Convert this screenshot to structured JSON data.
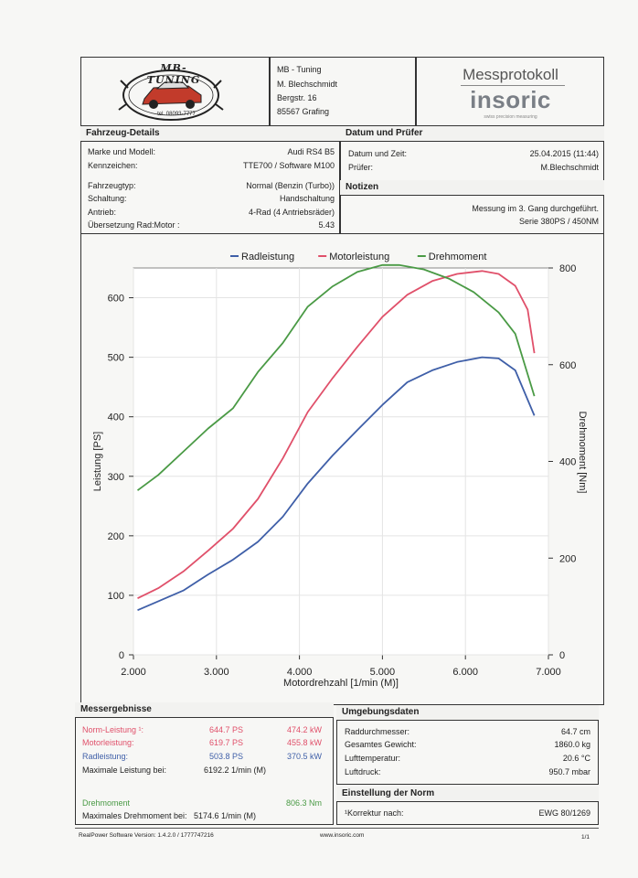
{
  "company": {
    "logo_text": "MB-TUNING",
    "logo_phone": "tel. 08093-7777",
    "name": "MB - Tuning",
    "person": "M. Blechschmidt",
    "street": "Bergstr. 16",
    "city": "85567 Grafing"
  },
  "protocol": {
    "title": "Messprotokoll",
    "brand": "insoric",
    "brand_tagline": "swiss precision measuring"
  },
  "vehicle": {
    "header": "Fahrzeug-Details",
    "rows": [
      {
        "label": "Marke und Modell:",
        "value": "Audi RS4 B5"
      },
      {
        "label": "Kennzeichen:",
        "value": "TTE700 / Software M100"
      },
      {
        "label": "Fahrzeugtyp:",
        "value": "Normal (Benzin (Turbo))"
      },
      {
        "label": "Schaltung:",
        "value": "Handschaltung"
      },
      {
        "label": "Antrieb:",
        "value": "4-Rad (4 Antriebsräder)"
      },
      {
        "label": "Übersetzung Rad:Motor :",
        "value": "5.43"
      }
    ]
  },
  "date": {
    "header": "Datum und Prüfer",
    "rows": [
      {
        "label": "Datum und Zeit:",
        "value": "25.04.2015 (11:44)"
      },
      {
        "label": "Prüfer:",
        "value": "M.Blechschmidt"
      }
    ]
  },
  "notes": {
    "header": "Notizen",
    "line1": "Messung im 3. Gang durchgeführt.",
    "line2": "Serie 380PS / 450NM"
  },
  "chart_data": {
    "type": "line",
    "title": "",
    "xlabel": "Motordrehzahl [1/min (M)]",
    "ylabel": "Leistung [PS]",
    "y2label": "Drehmoment [Nm]",
    "xlim": [
      2000,
      7000
    ],
    "ylim": [
      0,
      650
    ],
    "y2lim": [
      0,
      800
    ],
    "xticks": [
      2000,
      3000,
      4000,
      5000,
      6000,
      7000
    ],
    "xtick_labels": [
      "2.000",
      "3.000",
      "4.000",
      "5.000",
      "6.000",
      "7.000"
    ],
    "yticks": [
      0,
      100,
      200,
      300,
      400,
      500,
      600
    ],
    "y2ticks": [
      0,
      200,
      400,
      600,
      800
    ],
    "grid": true,
    "legend": "top",
    "series": [
      {
        "name": "Radleistung",
        "color": "#3f5fa8",
        "axis": "left",
        "x": [
          2050,
          2300,
          2600,
          2900,
          3200,
          3500,
          3800,
          4100,
          4400,
          4700,
          5000,
          5300,
          5600,
          5900,
          6200,
          6400,
          6600,
          6830
        ],
        "y": [
          75,
          90,
          108,
          135,
          160,
          190,
          232,
          288,
          335,
          378,
          420,
          458,
          478,
          492,
          500,
          498,
          478,
          402
        ]
      },
      {
        "name": "Motorleistung",
        "color": "#e0506a",
        "axis": "left",
        "x": [
          2050,
          2300,
          2600,
          2900,
          3200,
          3500,
          3800,
          4100,
          4400,
          4700,
          5000,
          5300,
          5600,
          5900,
          6200,
          6400,
          6600,
          6750,
          6830
        ],
        "y": [
          95,
          112,
          140,
          175,
          212,
          262,
          330,
          408,
          465,
          518,
          568,
          605,
          628,
          640,
          645,
          640,
          620,
          580,
          507
        ]
      },
      {
        "name": "Drehmoment",
        "color": "#4a9a45",
        "axis": "right",
        "x": [
          2050,
          2300,
          2600,
          2900,
          3200,
          3500,
          3800,
          4100,
          4400,
          4700,
          5000,
          5200,
          5500,
          5800,
          6100,
          6400,
          6600,
          6830
        ],
        "y": [
          340,
          372,
          420,
          468,
          510,
          585,
          645,
          720,
          762,
          792,
          806,
          806,
          797,
          778,
          750,
          708,
          664,
          535
        ]
      }
    ]
  },
  "results": {
    "header": "Messergebnisse",
    "norm_label": "Norm-Leistung ¹:",
    "norm_ps": "644.7 PS",
    "norm_kw": "474.2 kW",
    "motor_label": "Motorleistung:",
    "motor_ps": "619.7 PS",
    "motor_kw": "455.8 kW",
    "rad_label": "Radleistung:",
    "rad_ps": "503.8 PS",
    "rad_kw": "370.5 kW",
    "max_power_label": "Maximale Leistung bei:",
    "max_power_rpm": "6192.2 1/min (M)",
    "torque_label": "Drehmoment",
    "torque_value": "806.3 Nm",
    "max_torque_label": "Maximales Drehmoment bei:",
    "max_torque_rpm": "5174.6 1/min (M)",
    "color_norm": "#e0506a",
    "color_rad": "#3f5fa8",
    "color_torque": "#4a9a45"
  },
  "environment": {
    "header": "Umgebungsdaten",
    "rows": [
      {
        "label": "Raddurchmesser:",
        "value": "64.7 cm"
      },
      {
        "label": "Gesamtes Gewicht:",
        "value": "1860.0 kg"
      },
      {
        "label": "Lufttemperatur:",
        "value": "20.6 °C"
      },
      {
        "label": "Luftdruck:",
        "value": "950.7 mbar"
      }
    ]
  },
  "norm": {
    "header": "Einstellung der Norm",
    "label": "¹Korrektur nach:",
    "value": "EWG 80/1269"
  },
  "footer": {
    "software": "RealPower Software Version: 1.4.2.0 / 1777747216",
    "url": "www.insoric.com",
    "page": "1/1"
  }
}
